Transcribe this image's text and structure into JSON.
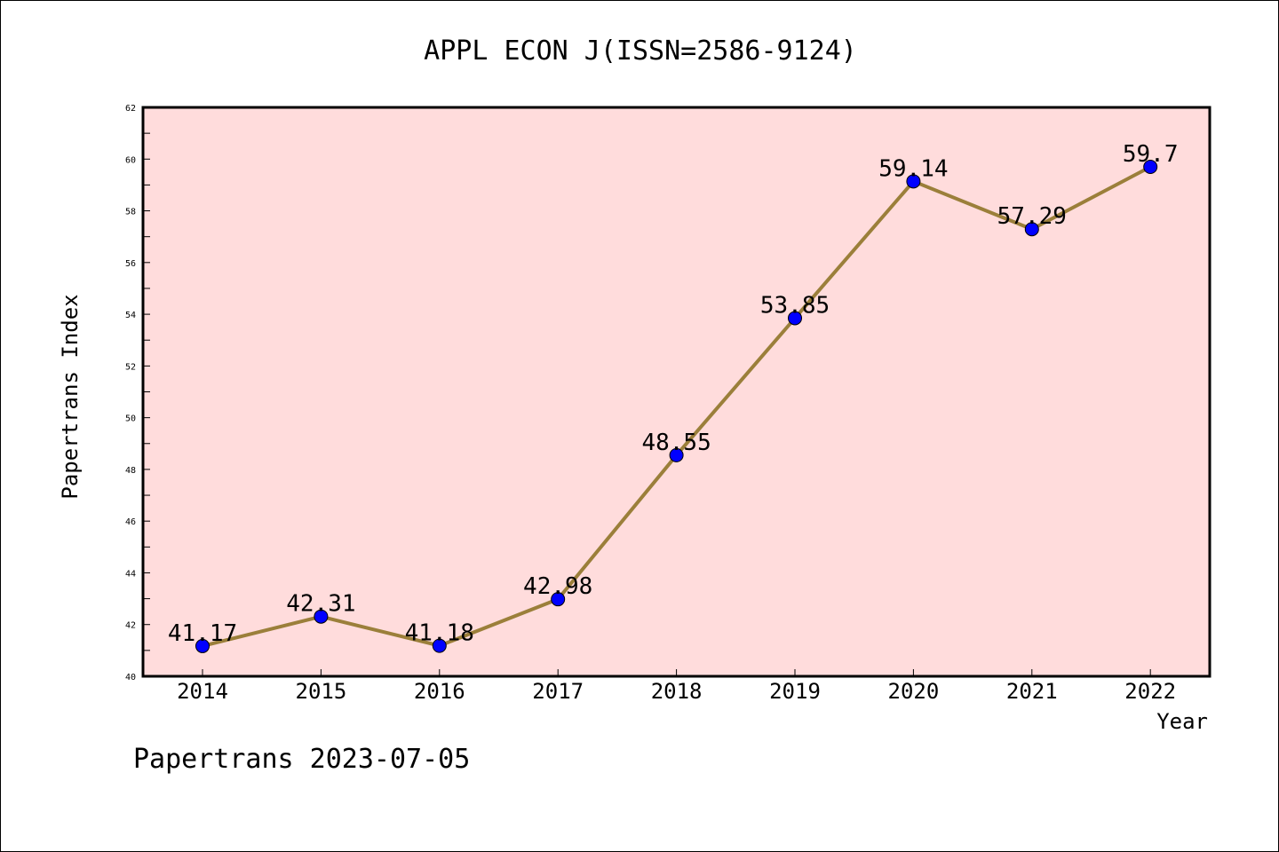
{
  "chart_data": {
    "type": "line",
    "title": "APPL ECON J(ISSN=2586-9124)",
    "xlabel": "Year",
    "ylabel": "Papertrans Index",
    "x": [
      "2014",
      "2015",
      "2016",
      "2017",
      "2018",
      "2019",
      "2020",
      "2021",
      "2022"
    ],
    "series": [
      {
        "values": [
          41.17,
          42.31,
          41.18,
          42.98,
          48.55,
          53.85,
          59.14,
          57.29,
          59.7
        ],
        "labels": [
          "41.17",
          "42.31",
          "41.18",
          "42.98",
          "48.55",
          "53.85",
          "59.14",
          "57.29",
          "59.7"
        ],
        "line_color": "#9b7f3a",
        "marker_color": "#0000ff"
      }
    ],
    "ylim": [
      40,
      62
    ],
    "yticks": [
      "40",
      "42",
      "44",
      "46",
      "48",
      "50",
      "52",
      "54",
      "56",
      "58",
      "60",
      "62"
    ],
    "plot_background": "#ffdcdc",
    "grid": false,
    "legend": false
  },
  "footer": {
    "text": "Papertrans 2023-07-05"
  }
}
